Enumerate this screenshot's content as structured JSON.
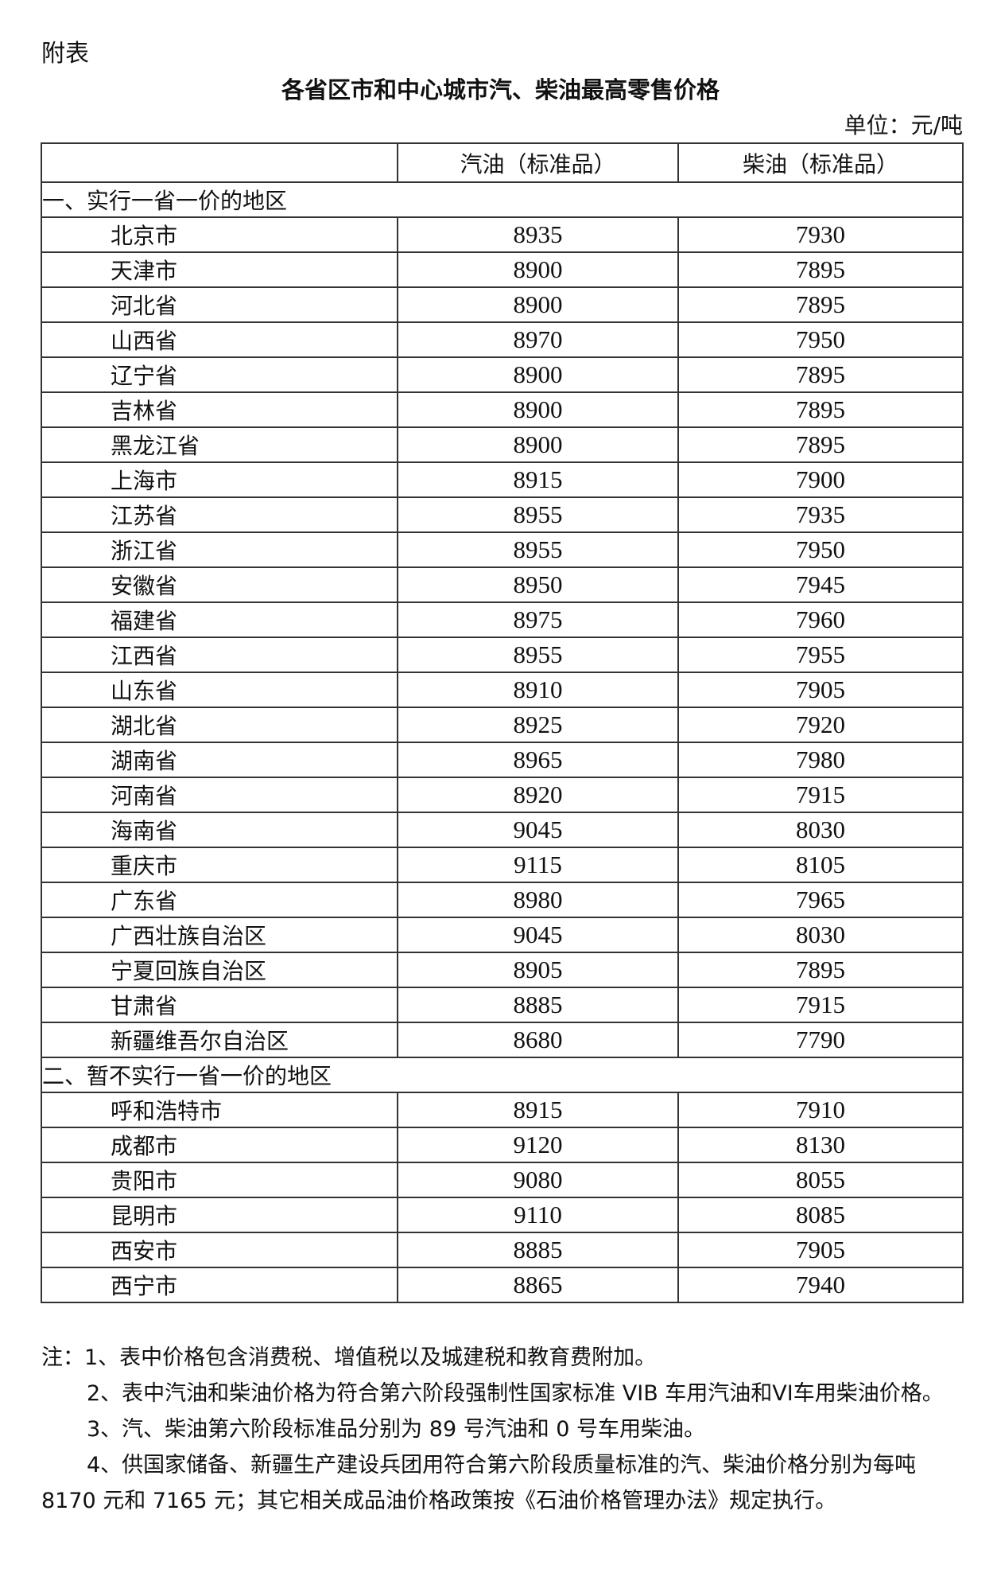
{
  "appendix_label": "附表",
  "title": "各省区市和中心城市汽、柴油最高零售价格",
  "unit": "单位：元/吨",
  "headers": [
    "",
    "汽油（标准品）",
    "柴油（标准品）"
  ],
  "sections": [
    {
      "label": "一、实行一省一价的地区",
      "rows": [
        [
          "北京市",
          "8935",
          "7930"
        ],
        [
          "天津市",
          "8900",
          "7895"
        ],
        [
          "河北省",
          "8900",
          "7895"
        ],
        [
          "山西省",
          "8970",
          "7950"
        ],
        [
          "辽宁省",
          "8900",
          "7895"
        ],
        [
          "吉林省",
          "8900",
          "7895"
        ],
        [
          "黑龙江省",
          "8900",
          "7895"
        ],
        [
          "上海市",
          "8915",
          "7900"
        ],
        [
          "江苏省",
          "8955",
          "7935"
        ],
        [
          "浙江省",
          "8955",
          "7950"
        ],
        [
          "安徽省",
          "8950",
          "7945"
        ],
        [
          "福建省",
          "8975",
          "7960"
        ],
        [
          "江西省",
          "8955",
          "7955"
        ],
        [
          "山东省",
          "8910",
          "7905"
        ],
        [
          "湖北省",
          "8925",
          "7920"
        ],
        [
          "湖南省",
          "8965",
          "7980"
        ],
        [
          "河南省",
          "8920",
          "7915"
        ],
        [
          "海南省",
          "9045",
          "8030"
        ],
        [
          "重庆市",
          "9115",
          "8105"
        ],
        [
          "广东省",
          "8980",
          "7965"
        ],
        [
          "广西壮族自治区",
          "9045",
          "8030"
        ],
        [
          "宁夏回族自治区",
          "8905",
          "7895"
        ],
        [
          "甘肃省",
          "8885",
          "7915"
        ],
        [
          "新疆维吾尔自治区",
          "8680",
          "7790"
        ]
      ]
    },
    {
      "label": "二、暂不实行一省一价的地区",
      "rows": [
        [
          "呼和浩特市",
          "8915",
          "7910"
        ],
        [
          "成都市",
          "9120",
          "8130"
        ],
        [
          "贵阳市",
          "9080",
          "8055"
        ],
        [
          "昆明市",
          "9110",
          "8085"
        ],
        [
          "西安市",
          "8885",
          "7905"
        ],
        [
          "西宁市",
          "8865",
          "7940"
        ]
      ]
    }
  ],
  "notes": [
    "注：1、表中价格包含消费税、增值税以及城建税和教育费附加。",
    "2、表中汽油和柴油价格为符合第六阶段强制性国家标准 VIB 车用汽油和VI车用柴油价格。",
    "3、汽、柴油第六阶段标准品分别为 89 号汽油和 0 号车用柴油。",
    "4、供国家储备、新疆生产建设兵团用符合第六阶段质量标准的汽、柴油价格分别为每吨 8170 元和 7165 元；其它相关成品油价格政策按《石油价格管理办法》规定执行。"
  ]
}
